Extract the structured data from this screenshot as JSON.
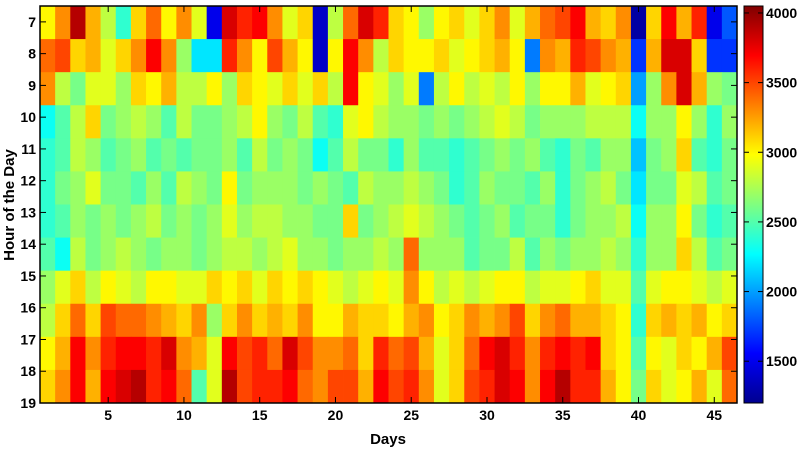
{
  "chart_data": {
    "type": "heatmap",
    "title": "",
    "xlabel": "Days",
    "ylabel": "Hour of the Day",
    "x_range": [
      0.5,
      46.5
    ],
    "y_range": [
      6.5,
      19
    ],
    "x_ticks": [
      5,
      10,
      15,
      20,
      25,
      30,
      35,
      40,
      45
    ],
    "y_ticks": [
      7,
      8,
      9,
      10,
      11,
      12,
      13,
      14,
      15,
      16,
      17,
      18,
      19
    ],
    "colorbar": {
      "range": [
        1200,
        4050
      ],
      "ticks": [
        1500,
        2000,
        2500,
        3000,
        3500,
        4000
      ],
      "colormap": "jet"
    },
    "days": [
      1,
      2,
      3,
      4,
      5,
      6,
      7,
      8,
      9,
      10,
      11,
      12,
      13,
      14,
      15,
      16,
      17,
      18,
      19,
      20,
      21,
      22,
      23,
      24,
      25,
      26,
      27,
      28,
      29,
      30,
      31,
      32,
      33,
      34,
      35,
      36,
      37,
      38,
      39,
      40,
      41,
      42,
      43,
      44,
      45,
      46
    ],
    "hours": [
      7,
      8,
      9,
      10,
      11,
      12,
      13,
      14,
      15,
      16,
      17,
      18
    ],
    "values": [
      [
        3000,
        3300,
        3900,
        3200,
        2800,
        2400,
        3100,
        3400,
        3000,
        3300,
        2900,
        1500,
        3800,
        3600,
        3700,
        3300,
        2900,
        3100,
        1400,
        2800,
        3400,
        3800,
        3600,
        3100,
        3000,
        2700,
        3000,
        3100,
        2900,
        3100,
        3300,
        2900,
        3200,
        3400,
        3500,
        3700,
        3200,
        3100,
        3300,
        1300,
        3100,
        3700,
        3200,
        3600,
        1500,
        1800
      ],
      [
        3400,
        3500,
        3100,
        3200,
        2900,
        3100,
        3300,
        3700,
        3300,
        2700,
        2200,
        2200,
        3600,
        3300,
        3000,
        3500,
        3200,
        3000,
        1400,
        3000,
        3700,
        3300,
        2800,
        3100,
        3000,
        3000,
        3100,
        2900,
        3000,
        3100,
        3200,
        3000,
        1900,
        3300,
        3200,
        3600,
        3500,
        3300,
        3200,
        1700,
        3200,
        3800,
        3800,
        3100,
        1700,
        1700
      ],
      [
        3300,
        2800,
        2600,
        2900,
        2900,
        2700,
        3100,
        3000,
        3200,
        2800,
        2800,
        3000,
        2700,
        3100,
        3000,
        2900,
        3100,
        2900,
        3100,
        2800,
        3700,
        3000,
        2900,
        2700,
        2900,
        1900,
        2800,
        3000,
        2800,
        2900,
        2800,
        3000,
        2700,
        3000,
        3000,
        3200,
        2900,
        3000,
        3100,
        2000,
        2700,
        3300,
        3800,
        3200,
        2700,
        2600
      ],
      [
        2300,
        2500,
        2800,
        3100,
        2600,
        2700,
        2800,
        2700,
        2500,
        2800,
        2600,
        2600,
        2700,
        2800,
        3000,
        2700,
        2600,
        2800,
        2500,
        2400,
        2900,
        3000,
        2800,
        2700,
        2700,
        2600,
        2700,
        2600,
        2700,
        2800,
        2900,
        2800,
        2600,
        2700,
        2700,
        2700,
        2800,
        2800,
        2800,
        2300,
        2700,
        2700,
        3000,
        2700,
        2400,
        2700
      ],
      [
        2400,
        2500,
        2800,
        2700,
        2500,
        2600,
        2700,
        2500,
        2600,
        2500,
        2600,
        2600,
        2700,
        2500,
        2800,
        2600,
        2700,
        2600,
        2300,
        2500,
        2800,
        2600,
        2600,
        2400,
        2700,
        2500,
        2500,
        2400,
        2500,
        2600,
        2700,
        2600,
        2700,
        2500,
        2400,
        2600,
        2500,
        2700,
        2700,
        2100,
        2600,
        2700,
        3100,
        2500,
        2400,
        2600
      ],
      [
        2400,
        2600,
        2700,
        2900,
        2600,
        2600,
        2500,
        2700,
        2500,
        2800,
        2700,
        2600,
        3000,
        2600,
        2700,
        2700,
        2700,
        2600,
        2700,
        2600,
        2500,
        2800,
        2700,
        2700,
        2800,
        2700,
        2600,
        2400,
        2500,
        2700,
        2600,
        2600,
        2500,
        2700,
        2400,
        2600,
        2700,
        2800,
        2600,
        2200,
        2600,
        2600,
        2900,
        2800,
        2500,
        2600
      ],
      [
        2400,
        2500,
        2700,
        2600,
        2700,
        2600,
        2700,
        2800,
        2600,
        2700,
        2600,
        2700,
        2900,
        2700,
        2800,
        2800,
        2700,
        2700,
        2600,
        2600,
        3100,
        2600,
        2700,
        2800,
        2900,
        2800,
        2700,
        2600,
        2500,
        2600,
        2700,
        2500,
        2600,
        2600,
        2400,
        2600,
        2700,
        2700,
        2800,
        2300,
        2700,
        2700,
        3000,
        2600,
        2400,
        2500
      ],
      [
        2500,
        2300,
        2800,
        2600,
        2700,
        2800,
        2700,
        2600,
        2700,
        2700,
        2600,
        2700,
        2800,
        2800,
        2700,
        2800,
        2900,
        2700,
        2700,
        2600,
        2700,
        2700,
        2800,
        2700,
        3400,
        2700,
        2700,
        2700,
        2500,
        2600,
        2600,
        2800,
        2500,
        2700,
        2600,
        2700,
        2700,
        2800,
        2700,
        2400,
        2700,
        2700,
        3100,
        2800,
        2500,
        2600
      ],
      [
        2700,
        2900,
        3100,
        2800,
        3000,
        2900,
        2800,
        3000,
        3000,
        2900,
        2900,
        3100,
        3000,
        3100,
        2900,
        3100,
        3000,
        3100,
        3000,
        2900,
        2800,
        2900,
        3000,
        2900,
        3300,
        3000,
        2800,
        2900,
        2800,
        2900,
        3000,
        3000,
        2800,
        2900,
        2900,
        3000,
        3100,
        2900,
        2900,
        2500,
        2900,
        3000,
        3000,
        2900,
        2800,
        2900
      ],
      [
        2800,
        3100,
        3400,
        3100,
        3500,
        3400,
        3400,
        3300,
        3200,
        3100,
        3300,
        2700,
        3100,
        3300,
        3100,
        3200,
        3100,
        3300,
        3000,
        3000,
        3200,
        3100,
        3100,
        3000,
        3200,
        3300,
        3000,
        3100,
        3300,
        3200,
        3300,
        3500,
        3100,
        3300,
        3400,
        3200,
        3200,
        3100,
        3000,
        2400,
        3100,
        3200,
        3100,
        3200,
        3000,
        3100
      ],
      [
        3000,
        3200,
        3700,
        3300,
        3600,
        3700,
        3700,
        3600,
        3800,
        3300,
        3200,
        2900,
        3700,
        3500,
        3600,
        3400,
        3800,
        3500,
        3300,
        3300,
        3400,
        3100,
        3600,
        3400,
        3500,
        3200,
        2900,
        3100,
        3400,
        3700,
        3800,
        3600,
        3300,
        3600,
        3700,
        3600,
        3700,
        3100,
        3000,
        2500,
        3000,
        2900,
        3100,
        3000,
        3200,
        3500
      ],
      [
        3100,
        3300,
        3700,
        3200,
        3700,
        3800,
        3900,
        3600,
        3700,
        3400,
        2500,
        2900,
        3900,
        3500,
        3600,
        3600,
        3700,
        3400,
        3300,
        3500,
        3500,
        3200,
        3700,
        3500,
        3600,
        3300,
        2900,
        3100,
        3500,
        3600,
        3800,
        3700,
        3300,
        3700,
        3900,
        3600,
        3600,
        3200,
        3000,
        2600,
        3100,
        2900,
        3000,
        3200,
        2900,
        3400
      ]
    ]
  }
}
